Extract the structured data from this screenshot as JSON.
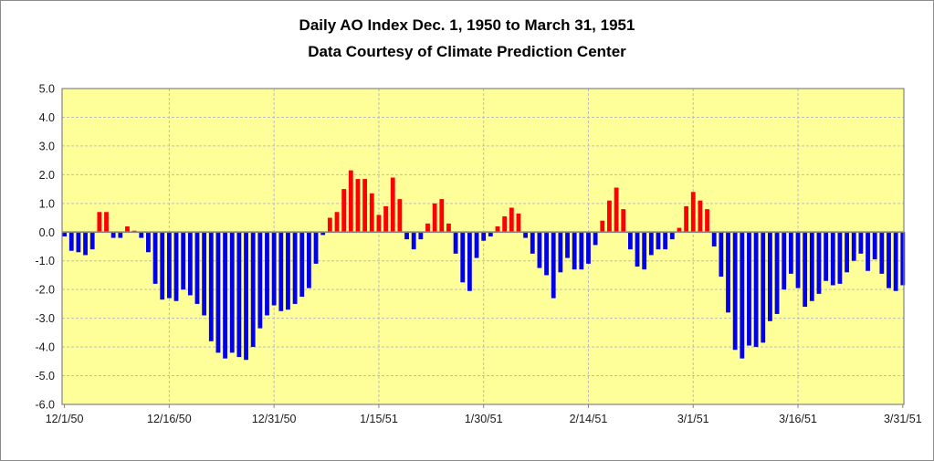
{
  "chart_data": {
    "type": "bar",
    "title": "Daily AO Index Dec. 1, 1950 to March 31, 1951",
    "subtitle": "Data Courtesy of Climate Prediction Center",
    "ylim": [
      -6.0,
      5.0
    ],
    "y_tick_step": 1.0,
    "y_tick_labels": [
      "5.0",
      "4.0",
      "3.0",
      "2.0",
      "1.0",
      "0.0",
      "-1.0",
      "-2.0",
      "-3.0",
      "-4.0",
      "-5.0",
      "-6.0"
    ],
    "x_ticks": [
      {
        "label": "12/1/50",
        "day_index": 0
      },
      {
        "label": "12/16/50",
        "day_index": 15
      },
      {
        "label": "12/31/50",
        "day_index": 30
      },
      {
        "label": "1/15/51",
        "day_index": 45
      },
      {
        "label": "1/30/51",
        "day_index": 60
      },
      {
        "label": "2/14/51",
        "day_index": 75
      },
      {
        "label": "3/1/51",
        "day_index": 90
      },
      {
        "label": "3/16/51",
        "day_index": 105
      },
      {
        "label": "3/31/51",
        "day_index": 120
      }
    ],
    "grid": true,
    "legend": "none",
    "colors": {
      "plot_background": "#FFFF99",
      "positive_bar": "#FF0000",
      "negative_bar": "#0000EE",
      "gridline": "#BDBDBD",
      "axis_line": "#848484",
      "tick_text": "#1A1A1A",
      "title_text": "#000000"
    },
    "dates": [
      "12/1/50",
      "12/2/50",
      "12/3/50",
      "12/4/50",
      "12/5/50",
      "12/6/50",
      "12/7/50",
      "12/8/50",
      "12/9/50",
      "12/10/50",
      "12/11/50",
      "12/12/50",
      "12/13/50",
      "12/14/50",
      "12/15/50",
      "12/16/50",
      "12/17/50",
      "12/18/50",
      "12/19/50",
      "12/20/50",
      "12/21/50",
      "12/22/50",
      "12/23/50",
      "12/24/50",
      "12/25/50",
      "12/26/50",
      "12/27/50",
      "12/28/50",
      "12/29/50",
      "12/30/50",
      "12/31/50",
      "1/1/51",
      "1/2/51",
      "1/3/51",
      "1/4/51",
      "1/5/51",
      "1/6/51",
      "1/7/51",
      "1/8/51",
      "1/9/51",
      "1/10/51",
      "1/11/51",
      "1/12/51",
      "1/13/51",
      "1/14/51",
      "1/15/51",
      "1/16/51",
      "1/17/51",
      "1/18/51",
      "1/19/51",
      "1/20/51",
      "1/21/51",
      "1/22/51",
      "1/23/51",
      "1/24/51",
      "1/25/51",
      "1/26/51",
      "1/27/51",
      "1/28/51",
      "1/29/51",
      "1/30/51",
      "1/31/51",
      "2/1/51",
      "2/2/51",
      "2/3/51",
      "2/4/51",
      "2/5/51",
      "2/6/51",
      "2/7/51",
      "2/8/51",
      "2/9/51",
      "2/10/51",
      "2/11/51",
      "2/12/51",
      "2/13/51",
      "2/14/51",
      "2/15/51",
      "2/16/51",
      "2/17/51",
      "2/18/51",
      "2/19/51",
      "2/20/51",
      "2/21/51",
      "2/22/51",
      "2/23/51",
      "2/24/51",
      "2/25/51",
      "2/26/51",
      "2/27/51",
      "2/28/51",
      "3/1/51",
      "3/2/51",
      "3/3/51",
      "3/4/51",
      "3/5/51",
      "3/6/51",
      "3/7/51",
      "3/8/51",
      "3/9/51",
      "3/10/51",
      "3/11/51",
      "3/12/51",
      "3/13/51",
      "3/14/51",
      "3/15/51",
      "3/16/51",
      "3/17/51",
      "3/18/51",
      "3/19/51",
      "3/20/51",
      "3/21/51",
      "3/22/51",
      "3/23/51",
      "3/24/51",
      "3/25/51",
      "3/26/51",
      "3/27/51",
      "3/28/51",
      "3/29/51",
      "3/30/51",
      "3/31/51"
    ],
    "values": [
      -0.15,
      -0.65,
      -0.7,
      -0.8,
      -0.6,
      0.7,
      0.7,
      -0.2,
      -0.2,
      0.2,
      0.05,
      -0.2,
      -0.7,
      -1.8,
      -2.35,
      -2.3,
      -2.4,
      -2.0,
      -2.2,
      -2.5,
      -2.9,
      -3.8,
      -4.2,
      -4.4,
      -4.2,
      -4.35,
      -4.45,
      -4.0,
      -3.35,
      -2.9,
      -2.55,
      -2.75,
      -2.7,
      -2.5,
      -2.25,
      -1.95,
      -1.1,
      -0.1,
      0.5,
      0.7,
      1.5,
      2.15,
      1.85,
      1.85,
      1.35,
      0.6,
      0.9,
      1.9,
      1.15,
      -0.25,
      -0.6,
      -0.25,
      0.3,
      1.0,
      1.15,
      0.3,
      -0.75,
      -1.75,
      -2.05,
      -0.9,
      -0.3,
      -0.15,
      0.2,
      0.55,
      0.85,
      0.65,
      -0.2,
      -0.75,
      -1.25,
      -1.5,
      -2.3,
      -1.4,
      -0.9,
      -1.3,
      -1.3,
      -1.1,
      -0.45,
      0.4,
      1.1,
      1.55,
      0.8,
      -0.6,
      -1.2,
      -1.3,
      -0.8,
      -0.6,
      -0.6,
      -0.25,
      0.15,
      0.9,
      1.4,
      1.1,
      0.8,
      -0.5,
      -1.55,
      -2.8,
      -4.1,
      -4.4,
      -3.95,
      -4.0,
      -3.85,
      -3.1,
      -2.85,
      -2.0,
      -1.45,
      -1.95,
      -2.6,
      -2.4,
      -2.15,
      -1.7,
      -1.85,
      -1.8,
      -1.4,
      -1.0,
      -0.75,
      -1.35,
      -0.95,
      -1.45,
      -1.95,
      -2.05,
      -1.85
    ]
  }
}
